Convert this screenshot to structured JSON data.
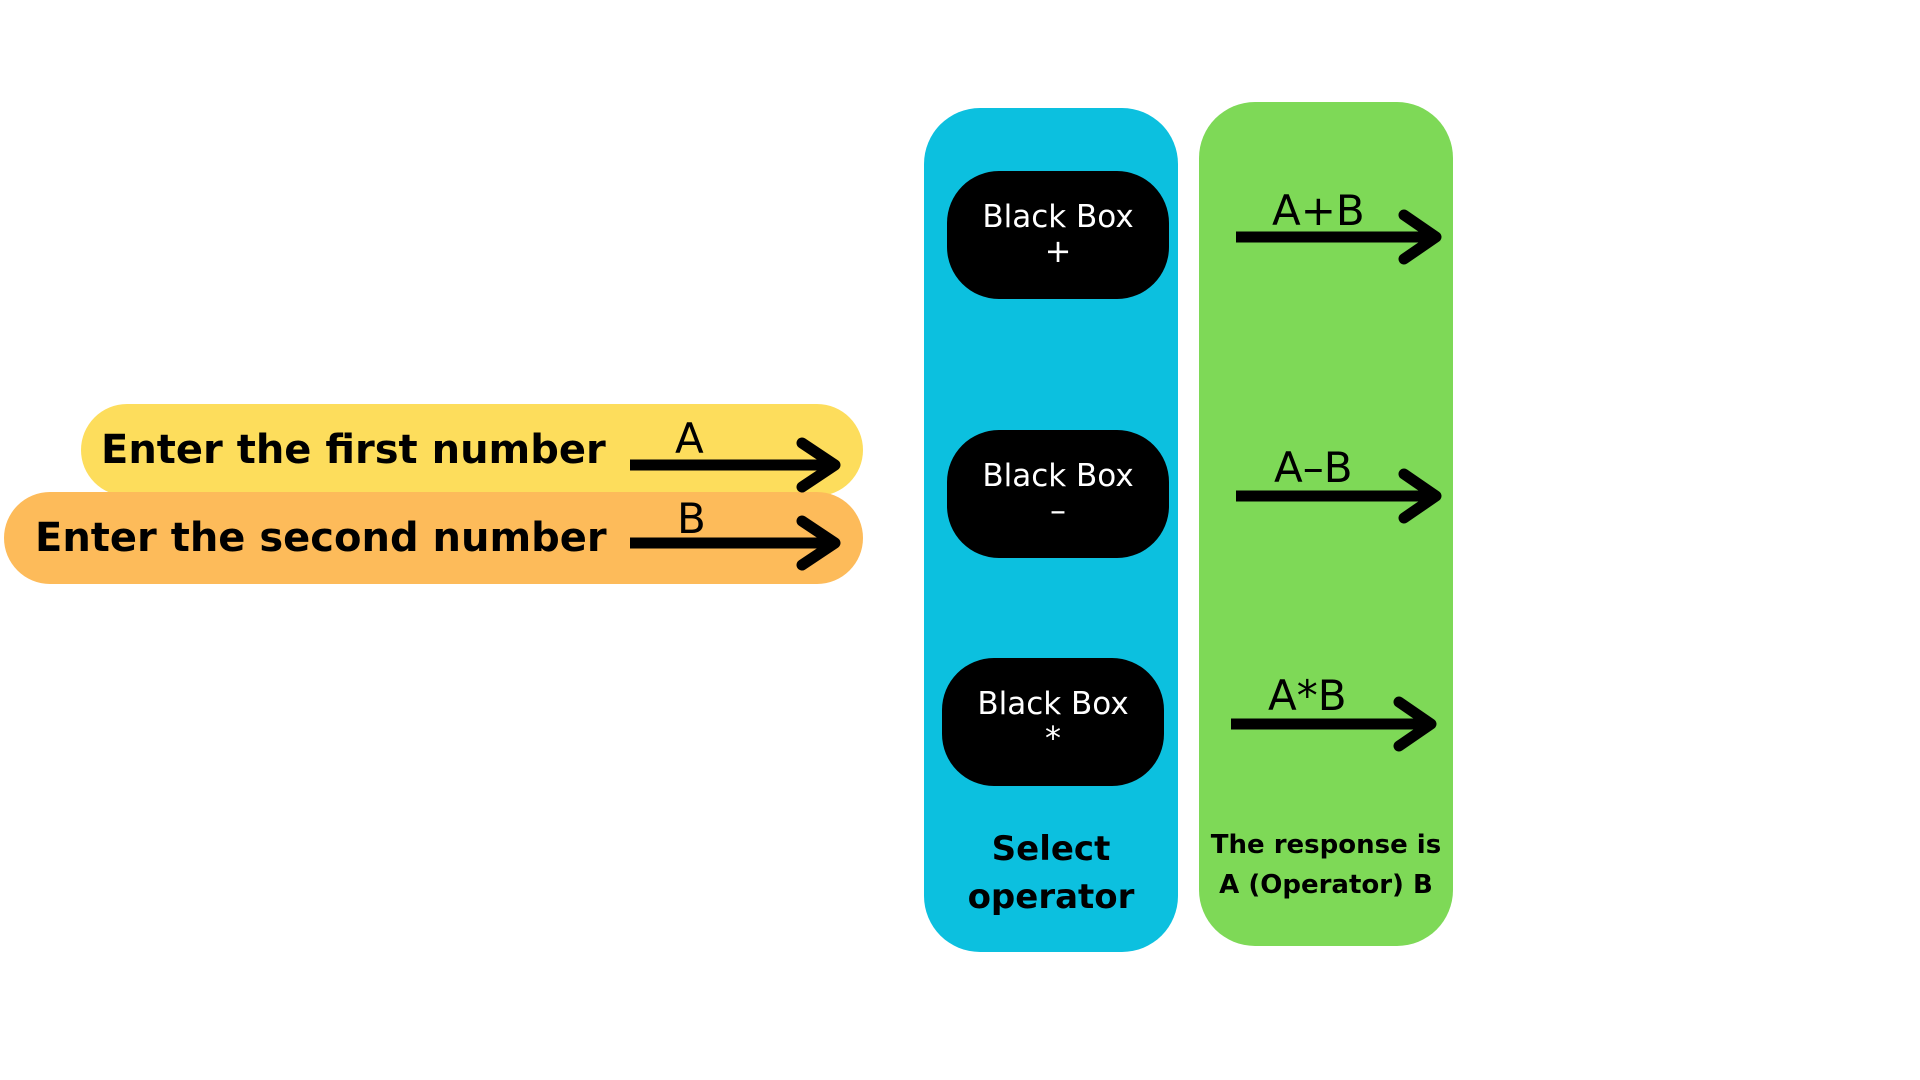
{
  "colors": {
    "first_input": "#FDDD5C",
    "second_input": "#FDBB5A",
    "operator_column": "#0CC0DF",
    "result_column": "#7ED957",
    "black_box": "#000000"
  },
  "inputs": {
    "first": {
      "label": "Enter the first number",
      "variable": "A"
    },
    "second": {
      "label": "Enter the second number",
      "variable": "B"
    }
  },
  "operator_column": {
    "caption": "Select operator",
    "boxes": [
      {
        "title": "Black Box",
        "symbol": "+"
      },
      {
        "title": "Black Box",
        "symbol": "–"
      },
      {
        "title": "Black Box",
        "symbol": "*"
      }
    ]
  },
  "result_column": {
    "caption": "The response is A (Operator) B",
    "results": [
      "A+B",
      "A–B",
      "A*B"
    ]
  },
  "icons": [
    "arrow-right-icon"
  ]
}
